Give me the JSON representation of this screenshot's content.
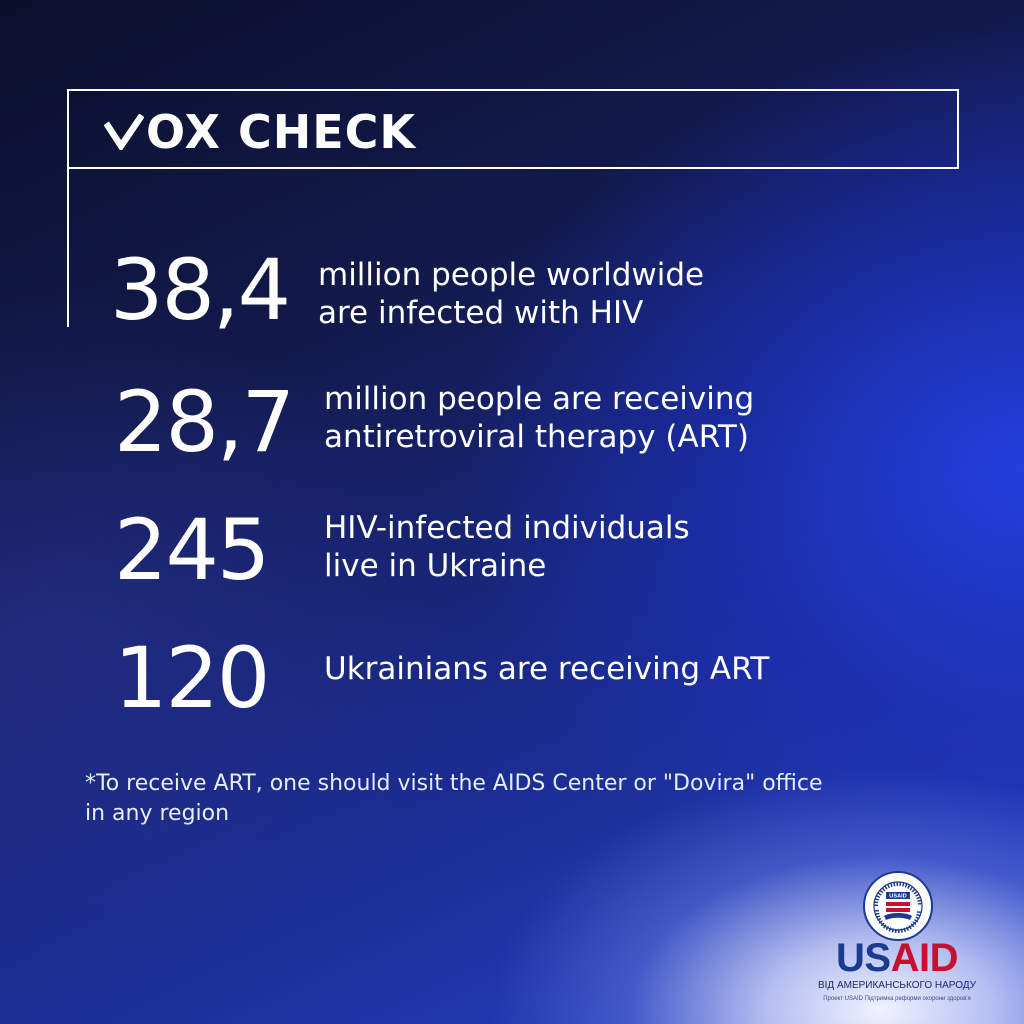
{
  "header": {
    "brand_check": "V",
    "brand_text": "OX CHECK"
  },
  "stats": [
    {
      "number": "38,4",
      "line1": "million people worldwide",
      "line2": "are infected with HIV"
    },
    {
      "number": "28,7",
      "line1": "million people are receiving",
      "line2": "antiretroviral therapy (ART)"
    },
    {
      "number": "245",
      "line1": "HIV-infected individuals",
      "line2": "live in Ukraine"
    },
    {
      "number": "120",
      "line1": "Ukrainians are receiving ART",
      "line2": ""
    }
  ],
  "footnote": {
    "line1": "*To receive ART, one should visit the AIDS Center or \"Dovira\" office",
    "line2": "in any region"
  },
  "logo": {
    "word_us": "US",
    "word_aid": "AID",
    "subtitle": "ВІД АМЕРИКАНСЬКОГО НАРОДУ",
    "project": "Проект USAID Підтримка реформи охорони здоров'я",
    "seal_top_text": "UNITED STATES AGENCY",
    "seal_bottom_text": "INTERNATIONAL DEVELOPMENT",
    "seal_center_text": "USAID"
  },
  "colors": {
    "text": "#ffffff",
    "usaid_blue": "#1a3b8f",
    "usaid_red": "#c8102e",
    "bg_dark": "#0b0f2c",
    "bg_blue": "#2440c8"
  }
}
